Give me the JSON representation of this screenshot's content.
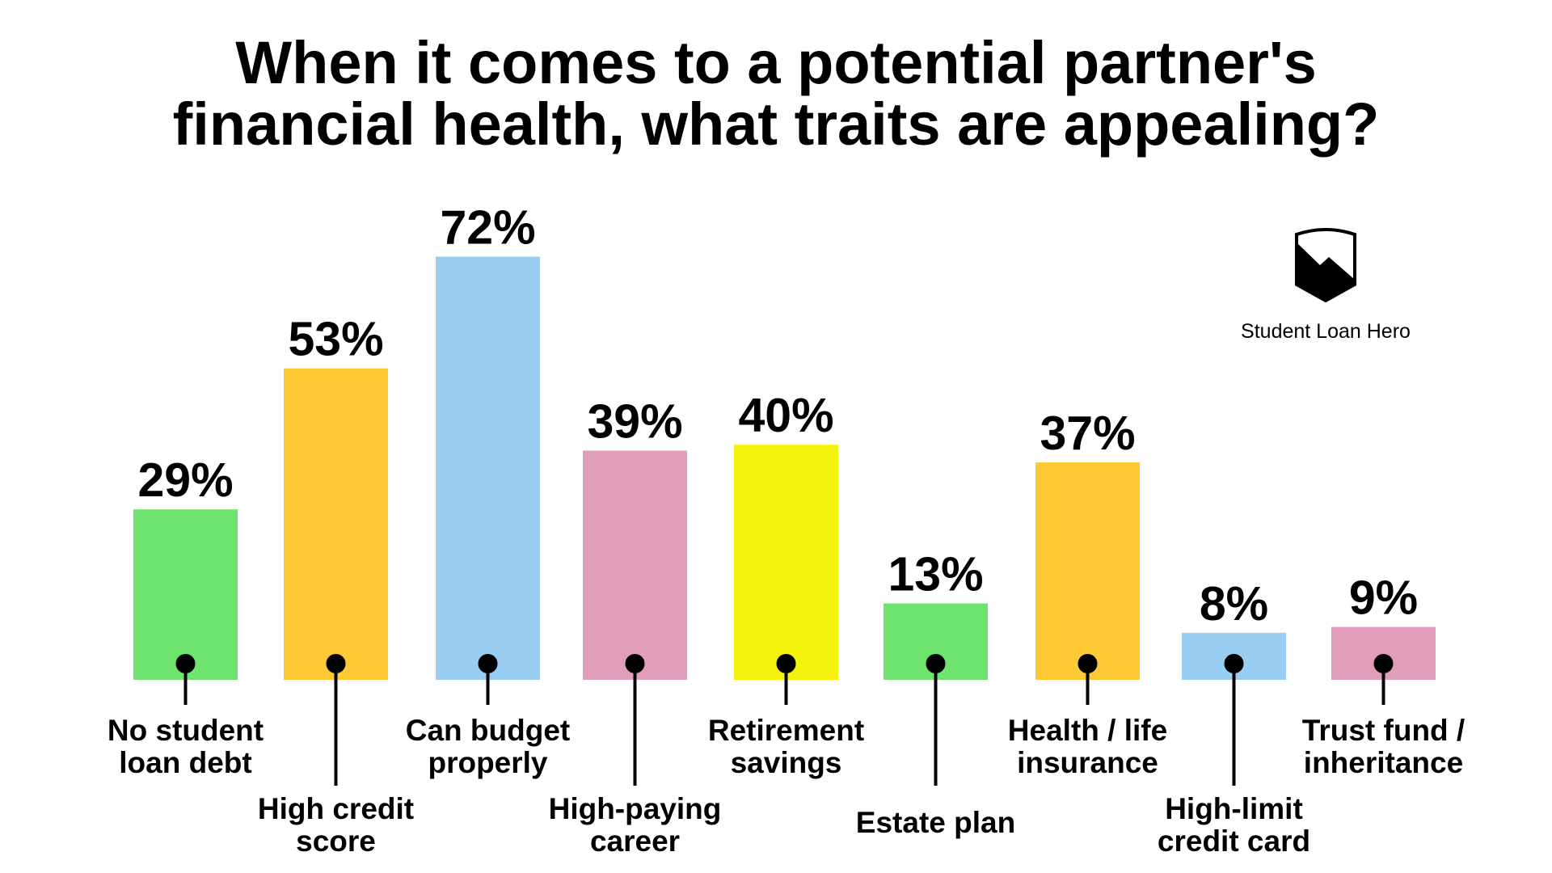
{
  "chart_data": {
    "type": "bar",
    "title_lines": [
      "When it comes to a potential partner's",
      "financial health, what traits are appealing?"
    ],
    "categories": [
      [
        "No student",
        "loan debt"
      ],
      [
        "High credit",
        "score"
      ],
      [
        "Can budget",
        "properly"
      ],
      [
        "High-paying",
        "career"
      ],
      [
        "Retirement",
        "savings"
      ],
      [
        "Estate plan"
      ],
      [
        "Health / life",
        "insurance"
      ],
      [
        "High-limit",
        "credit card"
      ],
      [
        "Trust fund /",
        "inheritance"
      ]
    ],
    "values": [
      29,
      53,
      72,
      39,
      40,
      13,
      37,
      8,
      9
    ],
    "value_labels": [
      "29%",
      "53%",
      "72%",
      "39%",
      "40%",
      "13%",
      "37%",
      "8%",
      "9%"
    ],
    "colors": [
      "#6ee46e",
      "#fdc935",
      "#99cdf1",
      "#e19eba",
      "#f5f20d",
      "#6ee46e",
      "#fdc935",
      "#99cdf1",
      "#e19eba"
    ],
    "unit": "%",
    "ylim": [
      0,
      100
    ],
    "grid": false,
    "axes_visible": false
  },
  "brand": {
    "name": "Student Loan Hero",
    "logo": "shield-mountain-logo"
  }
}
